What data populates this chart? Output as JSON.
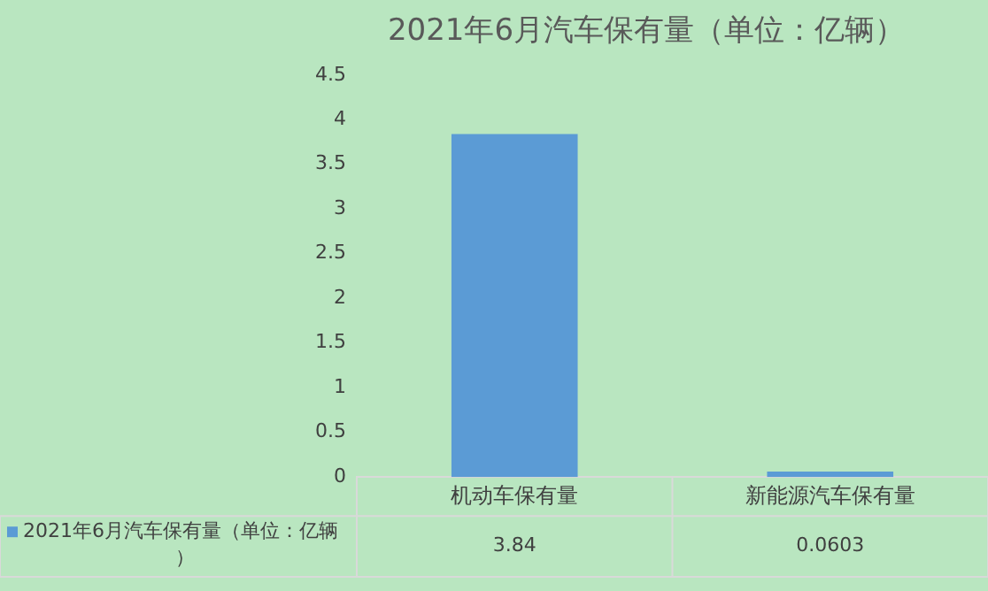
{
  "chart_data": {
    "type": "bar",
    "title": "2021年6月汽车保有量（单位：亿辆）",
    "categories": [
      "机动车保有量",
      "新能源汽车保有量"
    ],
    "series": [
      {
        "name": "2021年6月汽车保有量（单位：亿辆）",
        "color": "#5b9bd5",
        "values": [
          3.84,
          0.0603
        ]
      }
    ],
    "ylim": [
      0,
      4.5
    ],
    "yticks": [
      0,
      0.5,
      1,
      1.5,
      2,
      2.5,
      3,
      3.5,
      4,
      4.5
    ],
    "grid": false,
    "legend": "bottom left",
    "data_labels": true
  }
}
